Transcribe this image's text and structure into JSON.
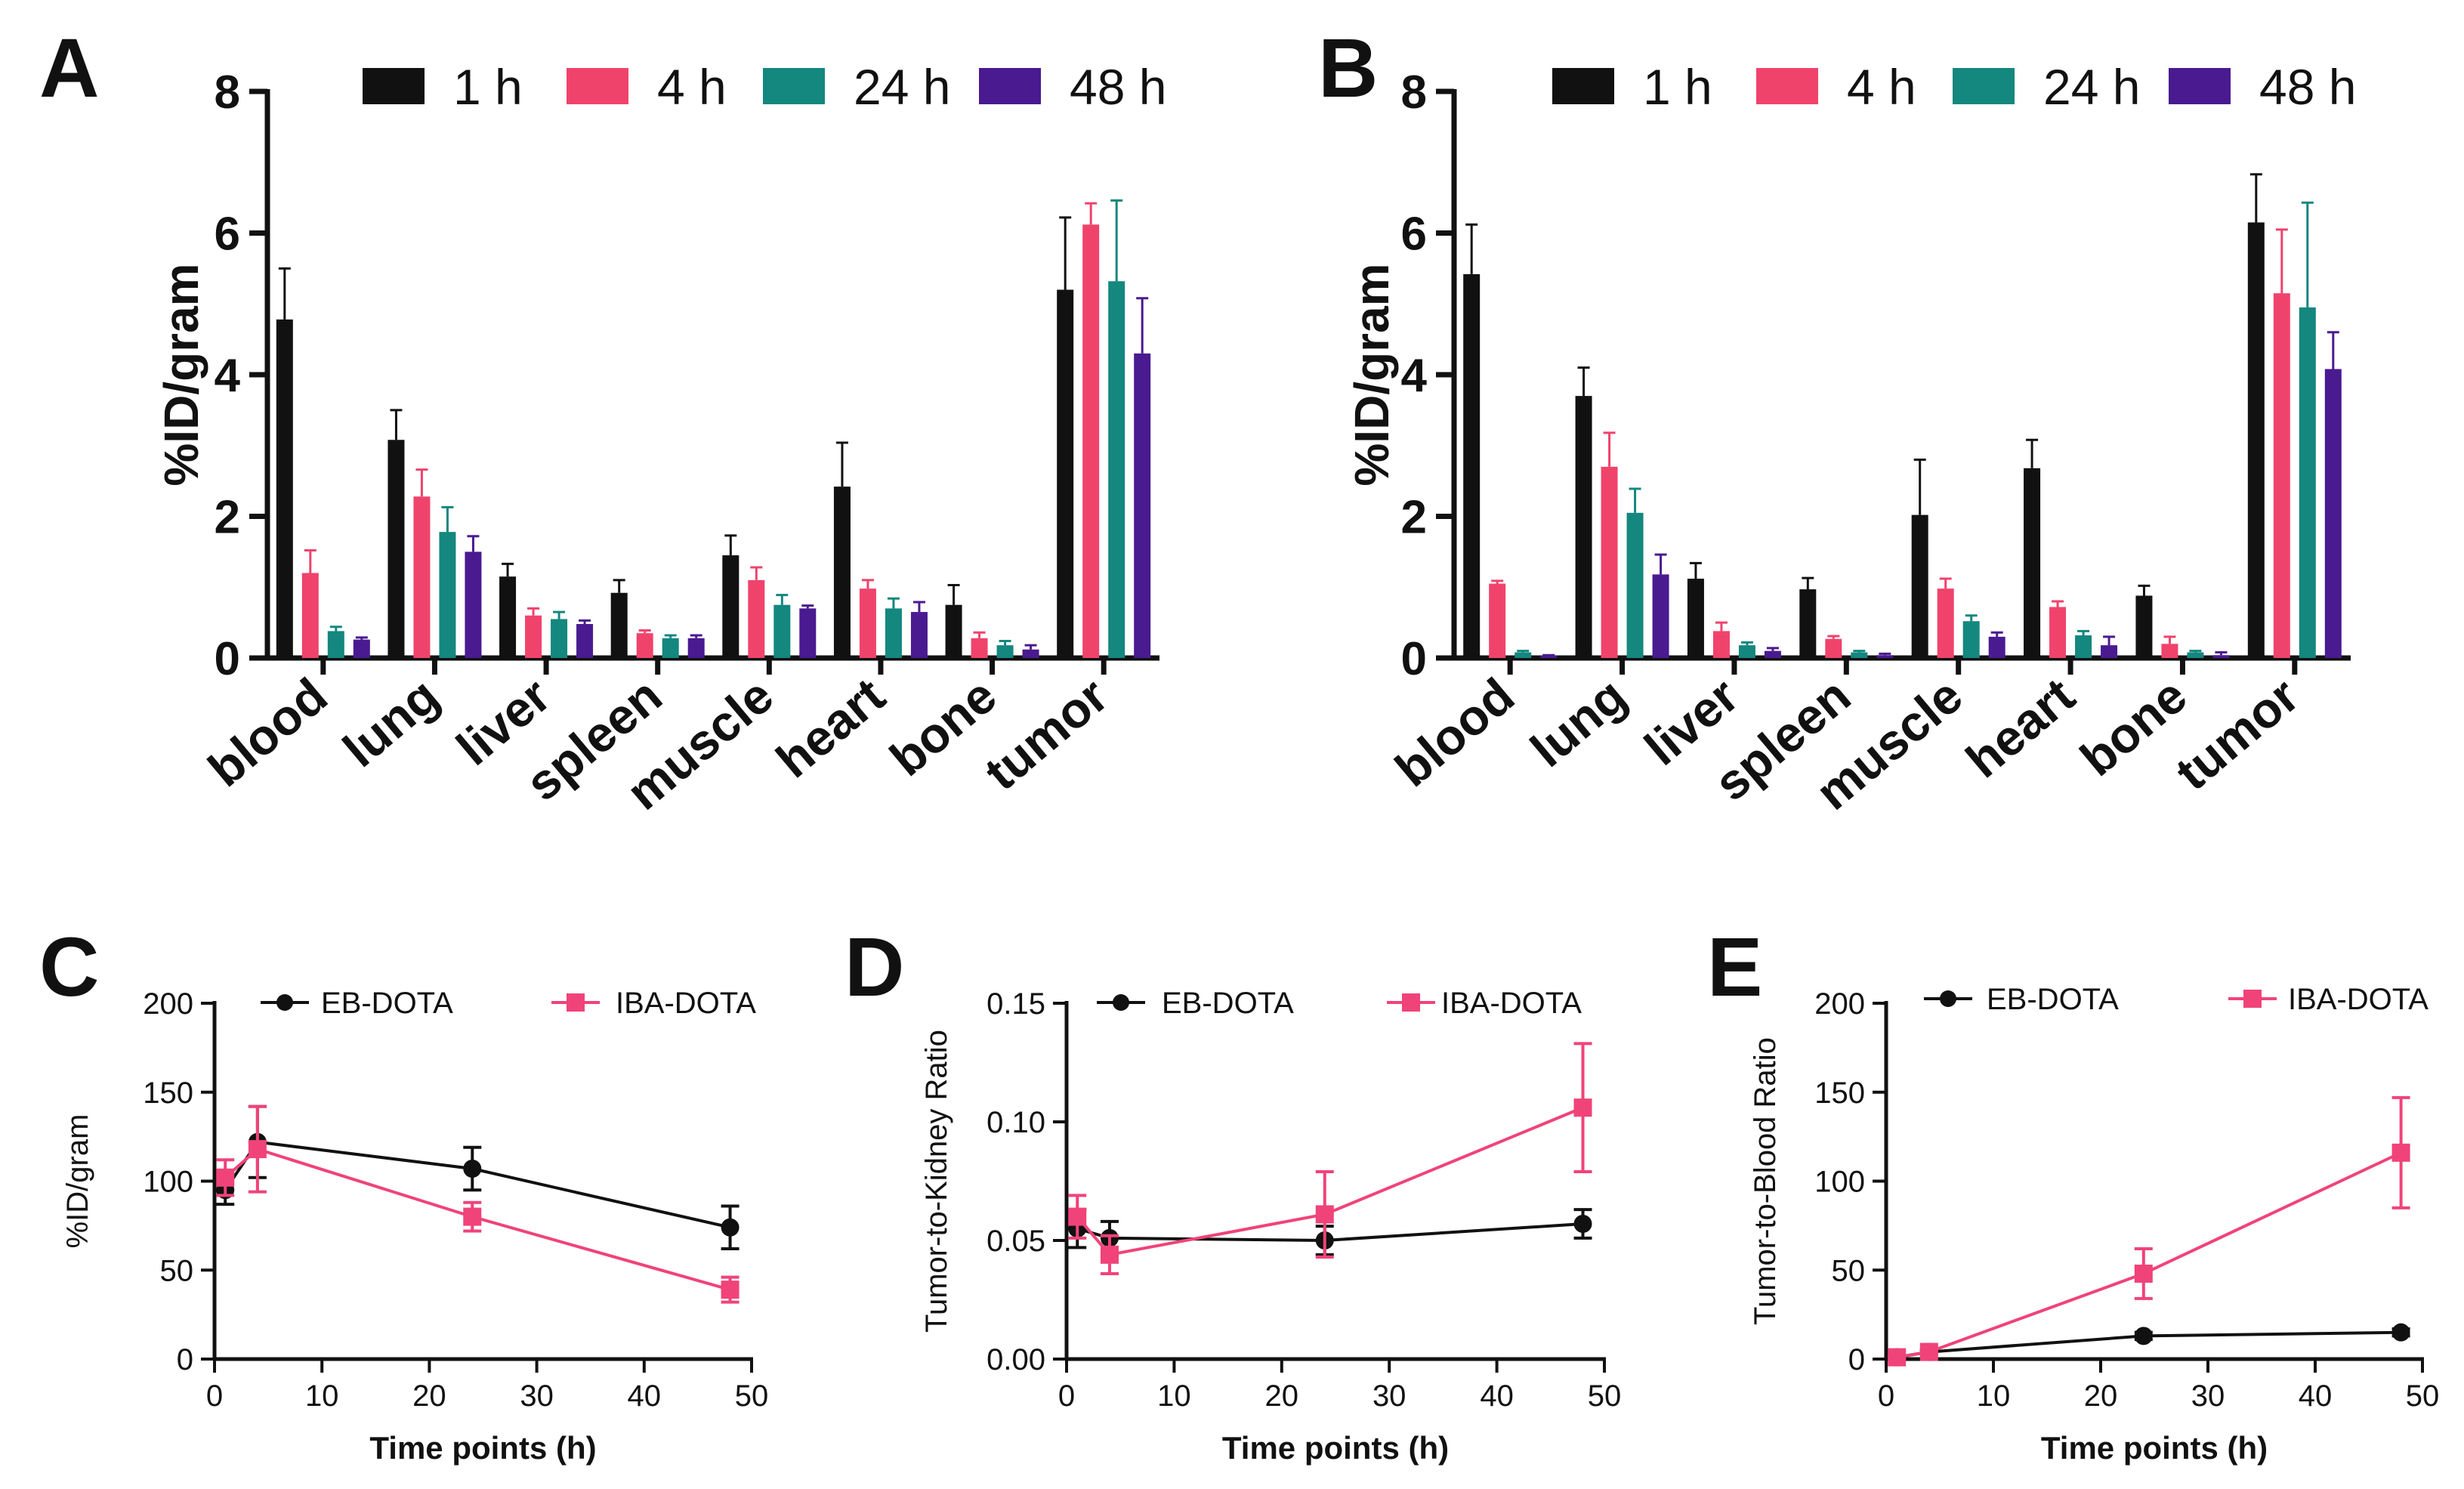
{
  "colors": {
    "1h": "#111111",
    "4h": "#f0436c",
    "24h": "#14877f",
    "48h": "#4a1a90",
    "EB-DOTA": "#111111",
    "IBA-DOTA": "#f0437a",
    "axis": "#111111"
  },
  "chart_data": [
    {
      "panel": "A",
      "type": "bar",
      "ylabel": "%ID/gram",
      "ylim": [
        0,
        8
      ],
      "yticks": [
        0,
        2,
        4,
        6,
        8
      ],
      "categories": [
        "blood",
        "lung",
        "liver",
        "spleen",
        "muscle",
        "heart",
        "bone",
        "tumor"
      ],
      "legend_position": "top",
      "series": [
        {
          "name": "1 h",
          "key": "1h",
          "values": [
            4.78,
            3.08,
            1.15,
            0.92,
            1.45,
            2.42,
            0.75,
            5.2
          ],
          "errors": [
            0.72,
            0.42,
            0.18,
            0.18,
            0.28,
            0.62,
            0.28,
            1.02
          ]
        },
        {
          "name": "4 h",
          "key": "4h",
          "values": [
            1.2,
            2.28,
            0.6,
            0.35,
            1.1,
            0.98,
            0.28,
            6.12
          ],
          "errors": [
            0.32,
            0.38,
            0.1,
            0.04,
            0.18,
            0.12,
            0.08,
            0.3
          ]
        },
        {
          "name": "24 h",
          "key": "24h",
          "values": [
            0.38,
            1.78,
            0.55,
            0.28,
            0.75,
            0.7,
            0.18,
            5.32
          ],
          "errors": [
            0.06,
            0.35,
            0.1,
            0.04,
            0.14,
            0.14,
            0.06,
            1.14
          ]
        },
        {
          "name": "48 h",
          "key": "48h",
          "values": [
            0.26,
            1.5,
            0.48,
            0.28,
            0.7,
            0.65,
            0.12,
            4.3
          ],
          "errors": [
            0.03,
            0.22,
            0.05,
            0.04,
            0.04,
            0.14,
            0.06,
            0.78
          ]
        }
      ]
    },
    {
      "panel": "B",
      "type": "bar",
      "ylabel": "%ID/gram",
      "ylim": [
        0,
        8
      ],
      "yticks": [
        0,
        2,
        4,
        6,
        8
      ],
      "categories": [
        "blood",
        "lung",
        "liver",
        "spleen",
        "muscle",
        "heart",
        "bone",
        "tumor"
      ],
      "legend_position": "top",
      "series": [
        {
          "name": "1 h",
          "key": "1h",
          "values": [
            5.42,
            3.7,
            1.12,
            0.97,
            2.02,
            2.68,
            0.88,
            6.15
          ],
          "errors": [
            0.7,
            0.4,
            0.22,
            0.16,
            0.78,
            0.4,
            0.14,
            0.68
          ]
        },
        {
          "name": "4 h",
          "key": "4h",
          "values": [
            1.05,
            2.7,
            0.38,
            0.27,
            0.98,
            0.72,
            0.2,
            5.15
          ],
          "errors": [
            0.04,
            0.48,
            0.12,
            0.04,
            0.14,
            0.08,
            0.1,
            0.9
          ]
        },
        {
          "name": "24 h",
          "key": "24h",
          "values": [
            0.08,
            2.05,
            0.18,
            0.08,
            0.52,
            0.32,
            0.08,
            4.95
          ],
          "errors": [
            0.02,
            0.34,
            0.04,
            0.02,
            0.08,
            0.06,
            0.02,
            1.48
          ]
        },
        {
          "name": "48 h",
          "key": "48h",
          "values": [
            0.03,
            1.18,
            0.1,
            0.04,
            0.3,
            0.18,
            0.04,
            4.08
          ],
          "errors": [
            0.01,
            0.28,
            0.04,
            0.02,
            0.06,
            0.12,
            0.04,
            0.52
          ]
        }
      ]
    },
    {
      "panel": "C",
      "type": "line",
      "xlabel": "Time points (h)",
      "ylabel": "%ID/gram",
      "xlim": [
        0,
        50
      ],
      "xticks": [
        0,
        10,
        20,
        30,
        40,
        50
      ],
      "ylim": [
        0,
        200
      ],
      "yticks": [
        0,
        50,
        100,
        150,
        200
      ],
      "yticklabels": [
        "0",
        "50",
        "100",
        "150",
        "200"
      ],
      "legend_position": "top",
      "series": [
        {
          "name": "EB-DOTA",
          "key": "EB-DOTA",
          "marker": "circle",
          "x": [
            1,
            4,
            24,
            48
          ],
          "y": [
            95,
            122,
            107,
            74
          ],
          "err": [
            8,
            20,
            12,
            12
          ]
        },
        {
          "name": "IBA-DOTA",
          "key": "IBA-DOTA",
          "marker": "square",
          "x": [
            1,
            4,
            24,
            48
          ],
          "y": [
            102,
            118,
            80,
            39
          ],
          "err": [
            10,
            24,
            8,
            7
          ]
        }
      ]
    },
    {
      "panel": "D",
      "type": "line",
      "xlabel": "Time points (h)",
      "ylabel": "Tumor-to-Kidney Ratio",
      "xlim": [
        0,
        50
      ],
      "xticks": [
        0,
        10,
        20,
        30,
        40,
        50
      ],
      "ylim": [
        0,
        0.15
      ],
      "yticks": [
        0,
        0.05,
        0.1,
        0.15
      ],
      "yticklabels": [
        "0.00",
        "0.05",
        "0.10",
        "0.15"
      ],
      "legend_position": "top",
      "series": [
        {
          "name": "EB-DOTA",
          "key": "EB-DOTA",
          "marker": "circle",
          "x": [
            1,
            4,
            24,
            48
          ],
          "y": [
            0.055,
            0.051,
            0.05,
            0.057
          ],
          "err": [
            0.008,
            0.007,
            0.006,
            0.006
          ]
        },
        {
          "name": "IBA-DOTA",
          "key": "IBA-DOTA",
          "marker": "square",
          "x": [
            1,
            4,
            24,
            48
          ],
          "y": [
            0.06,
            0.044,
            0.061,
            0.106
          ],
          "err": [
            0.009,
            0.008,
            0.018,
            0.027
          ]
        }
      ]
    },
    {
      "panel": "E",
      "type": "line",
      "xlabel": "Time points (h)",
      "ylabel": "Tumor-to-Blood Ratio",
      "xlim": [
        0,
        50
      ],
      "xticks": [
        0,
        10,
        20,
        30,
        40,
        50
      ],
      "ylim": [
        0,
        200
      ],
      "yticks": [
        0,
        50,
        100,
        150,
        200
      ],
      "yticklabels": [
        "0",
        "50",
        "100",
        "150",
        "200"
      ],
      "legend_position": "top",
      "series": [
        {
          "name": "EB-DOTA",
          "key": "EB-DOTA",
          "marker": "circle",
          "x": [
            1,
            4,
            24,
            48
          ],
          "y": [
            1,
            4,
            13,
            15
          ],
          "err": [
            0.5,
            1,
            2,
            2
          ]
        },
        {
          "name": "IBA-DOTA",
          "key": "IBA-DOTA",
          "marker": "square",
          "x": [
            1,
            4,
            24,
            48
          ],
          "y": [
            1,
            4,
            48,
            116
          ],
          "err": [
            0.5,
            1,
            14,
            31
          ]
        }
      ]
    }
  ]
}
